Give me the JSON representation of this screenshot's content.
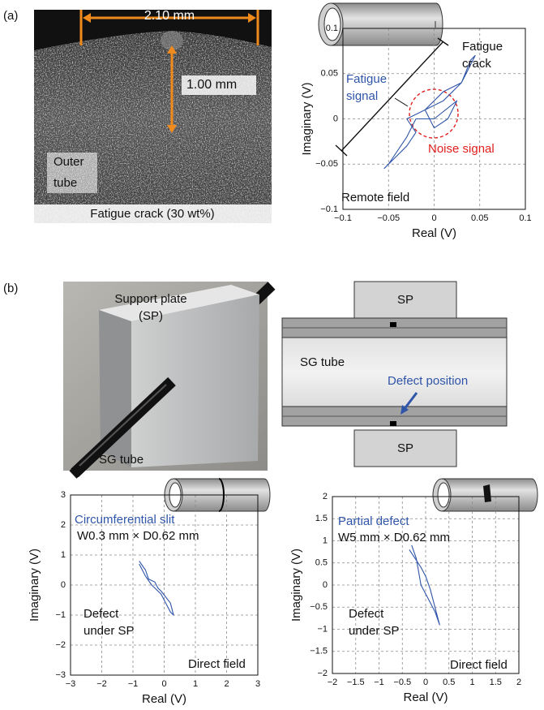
{
  "panel_a": {
    "label": "(a)",
    "photo": {
      "width_label": "2.10 mm",
      "depth_label": "1.00 mm",
      "region_label": [
        "Outer",
        "tube"
      ],
      "caption": "Fatigue crack (30 wt%)"
    }
  },
  "panel_b": {
    "label": "(b)",
    "photo": {
      "plate_label": [
        "Support plate",
        "(SP)"
      ],
      "tube_label": "SG tube"
    },
    "schematic": {
      "top_plate": "SP",
      "tube": "SG tube",
      "defect": "Defect position",
      "bottom_plate": "SP"
    }
  },
  "chart_data": [
    {
      "type": "line",
      "x_label": "Real (V)",
      "y_label": "Imaginary (V)",
      "color": "#2f55a8",
      "grid": true,
      "xlim": [
        -0.1,
        0.1
      ],
      "ylim": [
        -0.1,
        0.1
      ],
      "xticks": [
        {
          "value": -0.1,
          "label": "−0.1"
        },
        {
          "value": -0.05,
          "label": "−0.05"
        },
        0,
        0.05,
        0.1
      ],
      "yticks": [
        {
          "value": -0.1,
          "label": "−0.1"
        },
        {
          "value": -0.05,
          "label": "−0.05"
        },
        0,
        0.05,
        0.1
      ],
      "x": [
        -0.055,
        -0.04,
        -0.03,
        -0.02,
        -0.03,
        -0.01,
        0.01,
        0.02,
        0.03,
        0.04,
        0.045,
        0.03,
        0.01,
        -0.01,
        0.0,
        0.015,
        0.025,
        0.0,
        -0.02,
        -0.03,
        -0.05
      ],
      "values": [
        -0.055,
        -0.04,
        -0.03,
        -0.015,
        0.0,
        0.01,
        0.02,
        0.03,
        0.04,
        0.065,
        0.07,
        0.04,
        0.03,
        0.01,
        -0.01,
        0.0,
        0.02,
        0.0,
        0.0,
        -0.02,
        -0.05
      ],
      "annotations": [
        {
          "lines": [
            "Fatigue",
            "crack"
          ],
          "color": "#111111"
        },
        {
          "lines": [
            "Fatigue",
            "signal"
          ],
          "color": "#2f55a8"
        },
        {
          "lines": [
            "Noise signal"
          ],
          "color": "#e0201e"
        },
        {
          "lines": [
            "Remote field"
          ],
          "color": "#111111"
        }
      ]
    },
    {
      "type": "line",
      "x_label": "Real (V)",
      "y_label": "Imaginary (V)",
      "color": "#2f55a8",
      "grid": true,
      "xlim": [
        -3,
        3
      ],
      "ylim": [
        -3,
        3
      ],
      "xticks": [
        {
          "value": -3,
          "label": "−3"
        },
        {
          "value": -2,
          "label": "−2"
        },
        {
          "value": -1,
          "label": "−1"
        },
        0,
        1,
        2,
        3
      ],
      "yticks": [
        {
          "value": -3,
          "label": "−3"
        },
        {
          "value": -2,
          "label": "−2"
        },
        {
          "value": -1,
          "label": "−1"
        },
        0,
        1,
        2,
        3
      ],
      "x": [
        -0.8,
        -0.6,
        -0.5,
        -0.3,
        -0.2,
        -0.1,
        0.2,
        0.3,
        0.2,
        -0.1,
        -0.4,
        -0.6,
        -0.8
      ],
      "values": [
        0.8,
        0.5,
        0.2,
        0.1,
        -0.1,
        -0.2,
        -0.6,
        -1.0,
        -0.9,
        -0.3,
        0.0,
        0.3,
        0.7
      ],
      "annotations": [
        {
          "lines": [
            "Circumferential slit"
          ],
          "color": "#2f55a8"
        },
        {
          "lines": [
            "W0.3 mm × D0.62 mm"
          ],
          "color": "#111111"
        },
        {
          "lines": [
            "Defect",
            "under SP"
          ],
          "color": "#111111"
        },
        {
          "lines": [
            "Direct field"
          ],
          "color": "#111111"
        }
      ]
    },
    {
      "type": "line",
      "x_label": "Real (V)",
      "y_label": "Imaginary (V)",
      "color": "#2f55a8",
      "grid": true,
      "xlim": [
        -2,
        2
      ],
      "ylim": [
        -2,
        2
      ],
      "xticks": [
        {
          "value": -2,
          "label": "−2"
        },
        {
          "value": -1.5,
          "label": "−1.5"
        },
        {
          "value": -1,
          "label": "−1"
        },
        {
          "value": -0.5,
          "label": "−0.5"
        },
        0,
        0.5,
        1,
        1.5,
        2
      ],
      "yticks": [
        {
          "value": -2,
          "label": "−2"
        },
        {
          "value": -1.5,
          "label": "−1.5"
        },
        {
          "value": -1,
          "label": "−1"
        },
        {
          "value": -0.5,
          "label": "−0.5"
        },
        0,
        0.5,
        1,
        1.5,
        2
      ],
      "x": [
        -0.3,
        -0.2,
        -0.15,
        -0.1,
        0.0,
        0.1,
        0.2,
        0.3,
        0.2,
        0.1,
        0.0,
        -0.1,
        -0.35
      ],
      "values": [
        0.9,
        0.6,
        0.3,
        0.0,
        -0.2,
        -0.4,
        -0.6,
        -0.9,
        -0.5,
        -0.1,
        0.2,
        0.4,
        0.8
      ],
      "annotations": [
        {
          "lines": [
            "Partial defect"
          ],
          "color": "#2f55a8"
        },
        {
          "lines": [
            "W5 mm × D0.62 mm"
          ],
          "color": "#111111"
        },
        {
          "lines": [
            "Defect",
            "under SP"
          ],
          "color": "#111111"
        },
        {
          "lines": [
            "Direct field"
          ],
          "color": "#111111"
        }
      ]
    }
  ]
}
